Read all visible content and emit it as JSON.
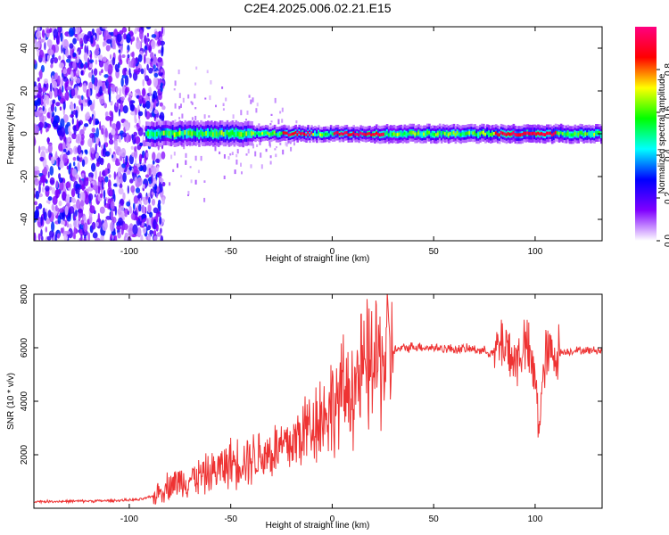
{
  "title": "C2E4.2025.006.02.21.E15",
  "chart_data": [
    {
      "type": "heatmap",
      "title": "C2E4.2025.006.02.21.E15",
      "xlabel": "Height of straight line (km)",
      "ylabel": "Frequency (Hz)",
      "xlim": [
        -147,
        133
      ],
      "ylim": [
        -50,
        50
      ],
      "xticks": [
        -100,
        -50,
        0,
        50,
        100
      ],
      "xtick_labels": [
        "-100",
        "-50",
        "0",
        "50",
        "100"
      ],
      "yticks": [
        -40,
        -20,
        0,
        20,
        40
      ],
      "ytick_labels": [
        "-40",
        "-20",
        "0",
        "20",
        "40"
      ],
      "description_values": {
        "noise_region_x": [
          -147,
          -85
        ],
        "signal_line_frequency_hz": 0,
        "peak_amplitude_regions_x": [
          [
            -25,
            -10
          ],
          [
            0,
            25
          ],
          [
            80,
            110
          ]
        ]
      },
      "colorbar": {
        "label": "Normalized spectral amplitude",
        "range": [
          0.0,
          1.0
        ],
        "ticks": [
          0.0,
          0.2,
          0.4,
          0.6,
          0.8
        ],
        "tick_labels": [
          "0.0",
          "0.2",
          "0.4",
          "0.6",
          "0.8"
        ],
        "colormap": [
          "#ffffff",
          "#8000ff",
          "#0000ff",
          "#00ffff",
          "#00ff00",
          "#ffff00",
          "#ff0000",
          "#ff0080"
        ]
      }
    },
    {
      "type": "line",
      "xlabel": "Height of straight line (km)",
      "ylabel": "SNR (10 * v/v)",
      "xlim": [
        -147,
        133
      ],
      "ylim": [
        0,
        8000
      ],
      "xticks": [
        -100,
        -50,
        0,
        50,
        100
      ],
      "xtick_labels": [
        "-100",
        "-50",
        "0",
        "50",
        "100"
      ],
      "yticks": [
        2000,
        4000,
        6000,
        8000
      ],
      "ytick_labels": [
        "2000",
        "4000",
        "6000",
        "8000"
      ],
      "color": "#ee3333",
      "series": [
        {
          "x": [
            -147,
            -130,
            -110,
            -95,
            -88,
            -80,
            -70,
            -60,
            -50,
            -40,
            -30,
            -20,
            -10,
            0,
            10,
            20,
            30,
            40,
            50,
            60,
            70,
            80,
            85,
            90,
            95,
            100,
            102,
            105,
            110,
            120,
            133
          ],
          "values": [
            250,
            260,
            280,
            320,
            450,
            900,
            1100,
            1300,
            1700,
            1900,
            2100,
            2400,
            3200,
            3800,
            4600,
            5400,
            5900,
            6050,
            6000,
            5950,
            5950,
            5800,
            6300,
            5400,
            6200,
            4800,
            3200,
            5600,
            5800,
            5900,
            5900
          ]
        }
      ]
    }
  ]
}
